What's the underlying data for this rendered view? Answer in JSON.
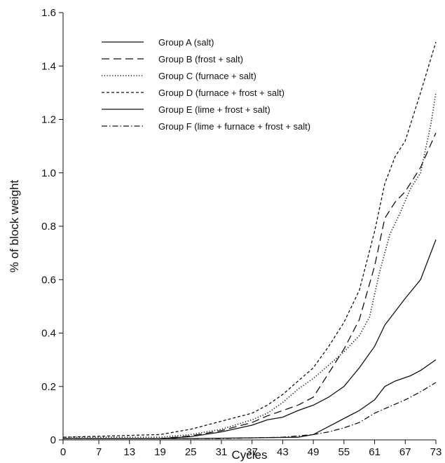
{
  "chart_data": {
    "type": "line",
    "xlabel": "Cycles",
    "ylabel": "% of block weight",
    "xlim": [
      0,
      73
    ],
    "ylim": [
      0,
      1.6
    ],
    "x_ticks": [
      0,
      7,
      13,
      19,
      25,
      31,
      37,
      43,
      49,
      55,
      61,
      67,
      73
    ],
    "y_ticks": [
      0,
      0.2,
      0.4,
      0.6,
      0.8,
      1.0,
      1.2,
      1.4,
      1.6
    ],
    "y_tick_labels": [
      "0",
      "0.2",
      "0.4",
      "0.6",
      "0.8",
      "1.0",
      "1.2",
      "1.4",
      "1.6"
    ],
    "grid": false,
    "legend_position": "top-left",
    "series": [
      {
        "name": "Group A (salt)",
        "style": "solid",
        "x": [
          0,
          25,
          46,
          49,
          52,
          55,
          58,
          61,
          63,
          65,
          68,
          70,
          73
        ],
        "y": [
          0.005,
          0.005,
          0.01,
          0.02,
          0.05,
          0.08,
          0.11,
          0.15,
          0.2,
          0.22,
          0.24,
          0.26,
          0.3
        ]
      },
      {
        "name": "Group B (frost + salt)",
        "style": "longdash",
        "x": [
          0,
          19,
          25,
          31,
          37,
          40,
          43,
          46,
          49,
          52,
          55,
          58,
          61,
          63,
          65,
          67,
          70,
          73
        ],
        "y": [
          0.005,
          0.005,
          0.015,
          0.035,
          0.065,
          0.09,
          0.11,
          0.13,
          0.16,
          0.25,
          0.34,
          0.45,
          0.65,
          0.83,
          0.89,
          0.93,
          1.02,
          1.15
        ]
      },
      {
        "name": "Group C (furnace + salt)",
        "style": "dotted",
        "x": [
          0,
          19,
          25,
          31,
          37,
          40,
          43,
          46,
          49,
          52,
          55,
          58,
          60,
          62,
          64,
          66,
          68,
          70,
          72,
          73
        ],
        "y": [
          0.01,
          0.01,
          0.02,
          0.04,
          0.075,
          0.1,
          0.14,
          0.19,
          0.23,
          0.28,
          0.33,
          0.39,
          0.46,
          0.63,
          0.77,
          0.85,
          0.94,
          1.0,
          1.18,
          1.3
        ]
      },
      {
        "name": "Group D (furnace + frost + salt)",
        "style": "shortdash",
        "x": [
          0,
          19,
          25,
          31,
          37,
          40,
          43,
          46,
          49,
          52,
          55,
          58,
          61,
          63,
          65,
          67,
          70,
          73
        ],
        "y": [
          0.01,
          0.02,
          0.04,
          0.07,
          0.1,
          0.13,
          0.17,
          0.22,
          0.27,
          0.35,
          0.44,
          0.56,
          0.78,
          0.96,
          1.06,
          1.12,
          1.3,
          1.49
        ]
      },
      {
        "name": "Group E (lime + frost + salt)",
        "style": "solid",
        "x": [
          0,
          19,
          25,
          31,
          37,
          40,
          43,
          46,
          49,
          52,
          55,
          58,
          61,
          63,
          65,
          67,
          70,
          73
        ],
        "y": [
          0.005,
          0.005,
          0.012,
          0.03,
          0.055,
          0.075,
          0.085,
          0.11,
          0.13,
          0.16,
          0.2,
          0.27,
          0.35,
          0.43,
          0.48,
          0.53,
          0.6,
          0.75
        ]
      },
      {
        "name": "Group F (lime + furnace + frost + salt)",
        "style": "dashdot",
        "x": [
          0,
          31,
          43,
          49,
          52,
          55,
          58,
          61,
          64,
          67,
          70,
          73
        ],
        "y": [
          0.005,
          0.005,
          0.01,
          0.02,
          0.03,
          0.045,
          0.065,
          0.1,
          0.125,
          0.15,
          0.18,
          0.215
        ]
      }
    ]
  }
}
